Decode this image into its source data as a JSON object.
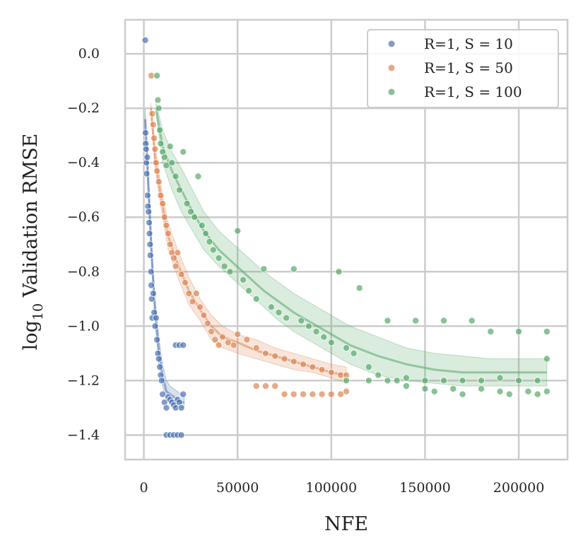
{
  "chart_data": {
    "type": "scatter",
    "title": "",
    "xlabel": "NFE",
    "ylabel_prefix": "log",
    "ylabel_sub": "10",
    "ylabel_suffix": " Validation RMSE",
    "xlim": [
      -10000,
      226000
    ],
    "ylim": [
      -1.49,
      0.125
    ],
    "xticks": [
      0,
      50000,
      100000,
      150000,
      200000
    ],
    "xtick_labels": [
      "0",
      "50000",
      "100000",
      "150000",
      "200000"
    ],
    "yticks": [
      0.0,
      -0.2,
      -0.4,
      -0.6,
      -0.8,
      -1.0,
      -1.2,
      -1.4
    ],
    "ytick_labels": [
      "0.0",
      "−0.2",
      "−0.4",
      "−0.6",
      "−0.8",
      "−1.0",
      "−1.2",
      "−1.4"
    ],
    "grid": true,
    "legend_position": "top-right",
    "series": [
      {
        "name": "R=1, S = 10",
        "color": "#4c72b0",
        "points": [
          [
            800,
            0.05
          ],
          [
            900,
            -0.29
          ],
          [
            1000,
            -0.33
          ],
          [
            1200,
            -0.35
          ],
          [
            1300,
            -0.4
          ],
          [
            1500,
            -0.44
          ],
          [
            1800,
            -0.38
          ],
          [
            2000,
            -0.52
          ],
          [
            2200,
            -0.56
          ],
          [
            2500,
            -0.58
          ],
          [
            2800,
            -0.62
          ],
          [
            3000,
            -0.66
          ],
          [
            3300,
            -0.7
          ],
          [
            3500,
            -0.74
          ],
          [
            3800,
            -0.8
          ],
          [
            4000,
            -0.85
          ],
          [
            4200,
            -0.9
          ],
          [
            4500,
            -0.97
          ],
          [
            5000,
            -0.88
          ],
          [
            5500,
            -0.95
          ],
          [
            6000,
            -1.0
          ],
          [
            6500,
            -0.97
          ],
          [
            7000,
            -1.05
          ],
          [
            7500,
            -1.1
          ],
          [
            8000,
            -1.12
          ],
          [
            8500,
            -1.15
          ],
          [
            9000,
            -1.18
          ],
          [
            9500,
            -1.2
          ],
          [
            10000,
            -1.25
          ],
          [
            11000,
            -1.28
          ],
          [
            12000,
            -1.3
          ],
          [
            13000,
            -1.26
          ],
          [
            14000,
            -1.27
          ],
          [
            15000,
            -1.28
          ],
          [
            16000,
            -1.29
          ],
          [
            17000,
            -1.3
          ],
          [
            18000,
            -1.27
          ],
          [
            19000,
            -1.28
          ],
          [
            20000,
            -1.3
          ],
          [
            21000,
            -1.25
          ],
          [
            12000,
            -1.4
          ],
          [
            14000,
            -1.4
          ],
          [
            16000,
            -1.4
          ],
          [
            18000,
            -1.4
          ],
          [
            20000,
            -1.4
          ],
          [
            17000,
            -1.07
          ],
          [
            19000,
            -1.07
          ],
          [
            21000,
            -1.07
          ]
        ],
        "band": {
          "x": [
            700,
            1500,
            3000,
            4500,
            6000,
            8000,
            10000,
            12000,
            14000,
            16000,
            18000,
            20000,
            21500
          ],
          "lower": [
            -0.28,
            -0.4,
            -0.62,
            -0.82,
            -0.98,
            -1.14,
            -1.22,
            -1.27,
            -1.28,
            -1.29,
            -1.29,
            -1.3,
            -1.3
          ],
          "upper": [
            -0.2,
            -0.3,
            -0.52,
            -0.74,
            -0.9,
            -1.04,
            -1.14,
            -1.2,
            -1.22,
            -1.23,
            -1.24,
            -1.25,
            -1.26
          ],
          "mean": [
            -0.24,
            -0.35,
            -0.57,
            -0.78,
            -0.94,
            -1.09,
            -1.18,
            -1.24,
            -1.25,
            -1.26,
            -1.27,
            -1.28,
            -1.28
          ]
        }
      },
      {
        "name": "R=1, S = 50",
        "color": "#dd8452",
        "points": [
          [
            4000,
            -0.08
          ],
          [
            4500,
            -0.22
          ],
          [
            5000,
            -0.26
          ],
          [
            5500,
            -0.31
          ],
          [
            6000,
            -0.35
          ],
          [
            6500,
            -0.4
          ],
          [
            7000,
            -0.43
          ],
          [
            8000,
            -0.47
          ],
          [
            9000,
            -0.52
          ],
          [
            10000,
            -0.55
          ],
          [
            11000,
            -0.6
          ],
          [
            12000,
            -0.63
          ],
          [
            13000,
            -0.66
          ],
          [
            14000,
            -0.7
          ],
          [
            15000,
            -0.73
          ],
          [
            16000,
            -0.75
          ],
          [
            17000,
            -0.78
          ],
          [
            18000,
            -0.73
          ],
          [
            20000,
            -0.81
          ],
          [
            22000,
            -0.84
          ],
          [
            24000,
            -0.88
          ],
          [
            26000,
            -0.91
          ],
          [
            28000,
            -0.88
          ],
          [
            30000,
            -0.93
          ],
          [
            32000,
            -0.96
          ],
          [
            34000,
            -0.99
          ],
          [
            36000,
            -1.02
          ],
          [
            38000,
            -1.05
          ],
          [
            40000,
            -1.07
          ],
          [
            42000,
            -1.04
          ],
          [
            45000,
            -1.06
          ],
          [
            48000,
            -1.07
          ],
          [
            50000,
            -1.03
          ],
          [
            55000,
            -1.05
          ],
          [
            60000,
            -1.08
          ],
          [
            65000,
            -1.1
          ],
          [
            70000,
            -1.11
          ],
          [
            75000,
            -1.12
          ],
          [
            80000,
            -1.13
          ],
          [
            85000,
            -1.14
          ],
          [
            90000,
            -1.15
          ],
          [
            95000,
            -1.16
          ],
          [
            100000,
            -1.17
          ],
          [
            105000,
            -1.18
          ],
          [
            108000,
            -1.18
          ],
          [
            60000,
            -1.22
          ],
          [
            65000,
            -1.22
          ],
          [
            70000,
            -1.22
          ],
          [
            75000,
            -1.25
          ],
          [
            80000,
            -1.25
          ],
          [
            85000,
            -1.25
          ],
          [
            90000,
            -1.25
          ],
          [
            95000,
            -1.25
          ],
          [
            100000,
            -1.25
          ],
          [
            105000,
            -1.25
          ],
          [
            108000,
            -1.24
          ]
        ],
        "band": {
          "x": [
            3800,
            6000,
            9000,
            13000,
            18000,
            24000,
            30000,
            36000,
            42000,
            50000,
            60000,
            70000,
            80000,
            90000,
            100000,
            108000
          ],
          "lower": [
            -0.22,
            -0.42,
            -0.56,
            -0.72,
            -0.82,
            -0.92,
            -0.98,
            -1.05,
            -1.08,
            -1.1,
            -1.12,
            -1.14,
            -1.16,
            -1.17,
            -1.19,
            -1.21
          ],
          "upper": [
            -0.18,
            -0.34,
            -0.48,
            -0.62,
            -0.72,
            -0.82,
            -0.9,
            -0.96,
            -1.0,
            -1.03,
            -1.05,
            -1.08,
            -1.1,
            -1.12,
            -1.14,
            -1.15
          ],
          "mean": [
            -0.2,
            -0.38,
            -0.52,
            -0.67,
            -0.77,
            -0.87,
            -0.94,
            -1.0,
            -1.04,
            -1.06,
            -1.09,
            -1.11,
            -1.13,
            -1.15,
            -1.17,
            -1.18
          ]
        }
      },
      {
        "name": "R=1, S = 100",
        "color": "#55a868",
        "points": [
          [
            7000,
            -0.08
          ],
          [
            7500,
            -0.17
          ],
          [
            8000,
            -0.2
          ],
          [
            8500,
            -0.28
          ],
          [
            9000,
            -0.33
          ],
          [
            10000,
            -0.36
          ],
          [
            11000,
            -0.38
          ],
          [
            12000,
            -0.41
          ],
          [
            14000,
            -0.34
          ],
          [
            15000,
            -0.4
          ],
          [
            17000,
            -0.45
          ],
          [
            19000,
            -0.5
          ],
          [
            21000,
            -0.36
          ],
          [
            23000,
            -0.55
          ],
          [
            25000,
            -0.58
          ],
          [
            27000,
            -0.6
          ],
          [
            29000,
            -0.45
          ],
          [
            31000,
            -0.63
          ],
          [
            33000,
            -0.66
          ],
          [
            35000,
            -0.69
          ],
          [
            37000,
            -0.72
          ],
          [
            40000,
            -0.75
          ],
          [
            43000,
            -0.78
          ],
          [
            46000,
            -0.8
          ],
          [
            50000,
            -0.65
          ],
          [
            53000,
            -0.83
          ],
          [
            56000,
            -0.87
          ],
          [
            60000,
            -0.9
          ],
          [
            64000,
            -0.79
          ],
          [
            68000,
            -0.93
          ],
          [
            72000,
            -0.95
          ],
          [
            76000,
            -0.97
          ],
          [
            80000,
            -0.79
          ],
          [
            84000,
            -0.98
          ],
          [
            88000,
            -1.0
          ],
          [
            92000,
            -1.02
          ],
          [
            96000,
            -1.04
          ],
          [
            100000,
            -1.06
          ],
          [
            104000,
            -0.8
          ],
          [
            108000,
            -1.08
          ],
          [
            112000,
            -1.1
          ],
          [
            115000,
            -0.86
          ],
          [
            120000,
            -1.15
          ],
          [
            125000,
            -1.18
          ],
          [
            130000,
            -0.98
          ],
          [
            135000,
            -1.2
          ],
          [
            140000,
            -1.22
          ],
          [
            145000,
            -0.98
          ],
          [
            150000,
            -1.23
          ],
          [
            155000,
            -1.24
          ],
          [
            160000,
            -0.98
          ],
          [
            165000,
            -1.23
          ],
          [
            170000,
            -1.25
          ],
          [
            175000,
            -0.98
          ],
          [
            180000,
            -1.23
          ],
          [
            185000,
            -1.02
          ],
          [
            190000,
            -1.24
          ],
          [
            195000,
            -1.25
          ],
          [
            200000,
            -1.02
          ],
          [
            205000,
            -1.24
          ],
          [
            210000,
            -1.25
          ],
          [
            215000,
            -1.12
          ],
          [
            215000,
            -1.24
          ],
          [
            215000,
            -1.02
          ],
          [
            108000,
            -1.2
          ],
          [
            120000,
            -1.2
          ],
          [
            130000,
            -1.2
          ],
          [
            140000,
            -1.19
          ],
          [
            150000,
            -1.2
          ],
          [
            160000,
            -1.2
          ],
          [
            170000,
            -1.2
          ],
          [
            180000,
            -1.2
          ],
          [
            190000,
            -1.19
          ],
          [
            200000,
            -1.2
          ],
          [
            210000,
            -1.2
          ]
        ],
        "band": {
          "x": [
            6500,
            10000,
            15000,
            20000,
            26000,
            32000,
            40000,
            48000,
            56000,
            64000,
            72000,
            80000,
            90000,
            100000,
            110000,
            125000,
            140000,
            155000,
            170000,
            185000,
            200000,
            215000
          ],
          "lower": [
            -0.22,
            -0.4,
            -0.5,
            -0.58,
            -0.65,
            -0.72,
            -0.78,
            -0.83,
            -0.88,
            -0.93,
            -0.98,
            -1.02,
            -1.06,
            -1.1,
            -1.14,
            -1.18,
            -1.2,
            -1.21,
            -1.22,
            -1.22,
            -1.22,
            -1.22
          ],
          "upper": [
            -0.18,
            -0.28,
            -0.36,
            -0.42,
            -0.5,
            -0.58,
            -0.65,
            -0.7,
            -0.75,
            -0.8,
            -0.84,
            -0.88,
            -0.92,
            -0.96,
            -1.0,
            -1.04,
            -1.08,
            -1.1,
            -1.11,
            -1.12,
            -1.12,
            -1.12
          ],
          "mean": [
            -0.2,
            -0.34,
            -0.43,
            -0.5,
            -0.58,
            -0.65,
            -0.72,
            -0.77,
            -0.82,
            -0.87,
            -0.91,
            -0.95,
            -0.99,
            -1.03,
            -1.07,
            -1.11,
            -1.14,
            -1.16,
            -1.17,
            -1.17,
            -1.17,
            -1.17
          ]
        }
      }
    ]
  }
}
